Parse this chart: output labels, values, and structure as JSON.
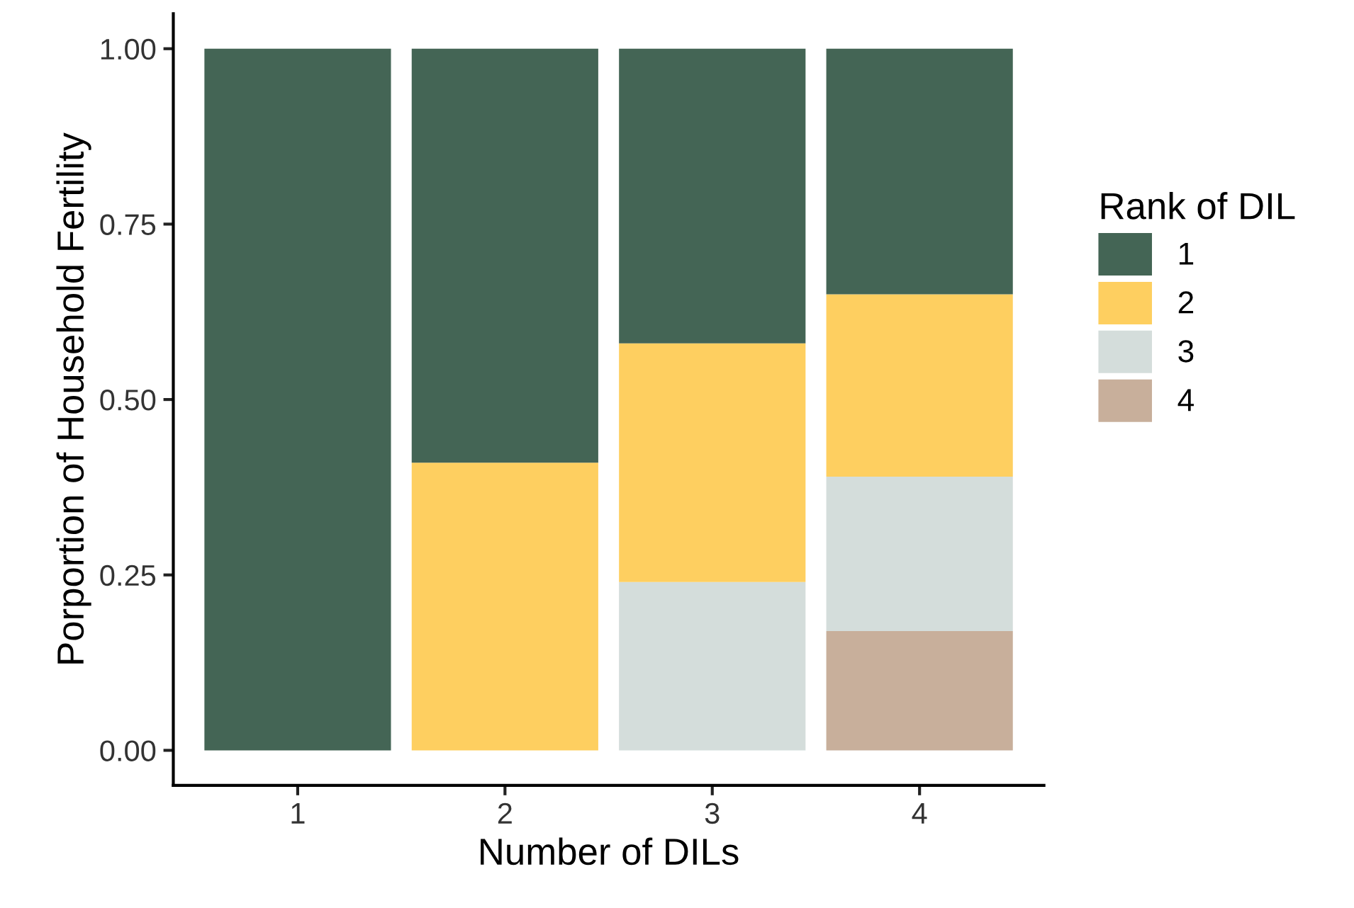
{
  "chart_data": {
    "type": "bar",
    "stacked": true,
    "xlabel": "Number of DILs",
    "ylabel": "Porportion of Household Fertility",
    "legend_title": "Rank of DIL",
    "legend": "right",
    "grid": false,
    "categories": [
      "1",
      "2",
      "3",
      "4"
    ],
    "series": [
      {
        "name": "4",
        "color": "#c8af9b",
        "values": [
          null,
          null,
          null,
          0.17
        ]
      },
      {
        "name": "3",
        "color": "#d4dddb",
        "values": [
          null,
          null,
          0.24,
          0.22
        ]
      },
      {
        "name": "2",
        "color": "#fecf60",
        "values": [
          null,
          0.41,
          0.34,
          0.26
        ]
      },
      {
        "name": "1",
        "color": "#446555",
        "values": [
          1.0,
          0.59,
          0.42,
          0.35
        ]
      }
    ],
    "ylim": [
      -0.05,
      1.05
    ],
    "yticks": [
      {
        "value": 0,
        "label": "0.00"
      },
      {
        "value": 0.25,
        "label": "0.25"
      },
      {
        "value": 0.5,
        "label": "0.50"
      },
      {
        "value": 0.75,
        "label": "0.75"
      },
      {
        "value": 1,
        "label": "1.00"
      }
    ]
  }
}
